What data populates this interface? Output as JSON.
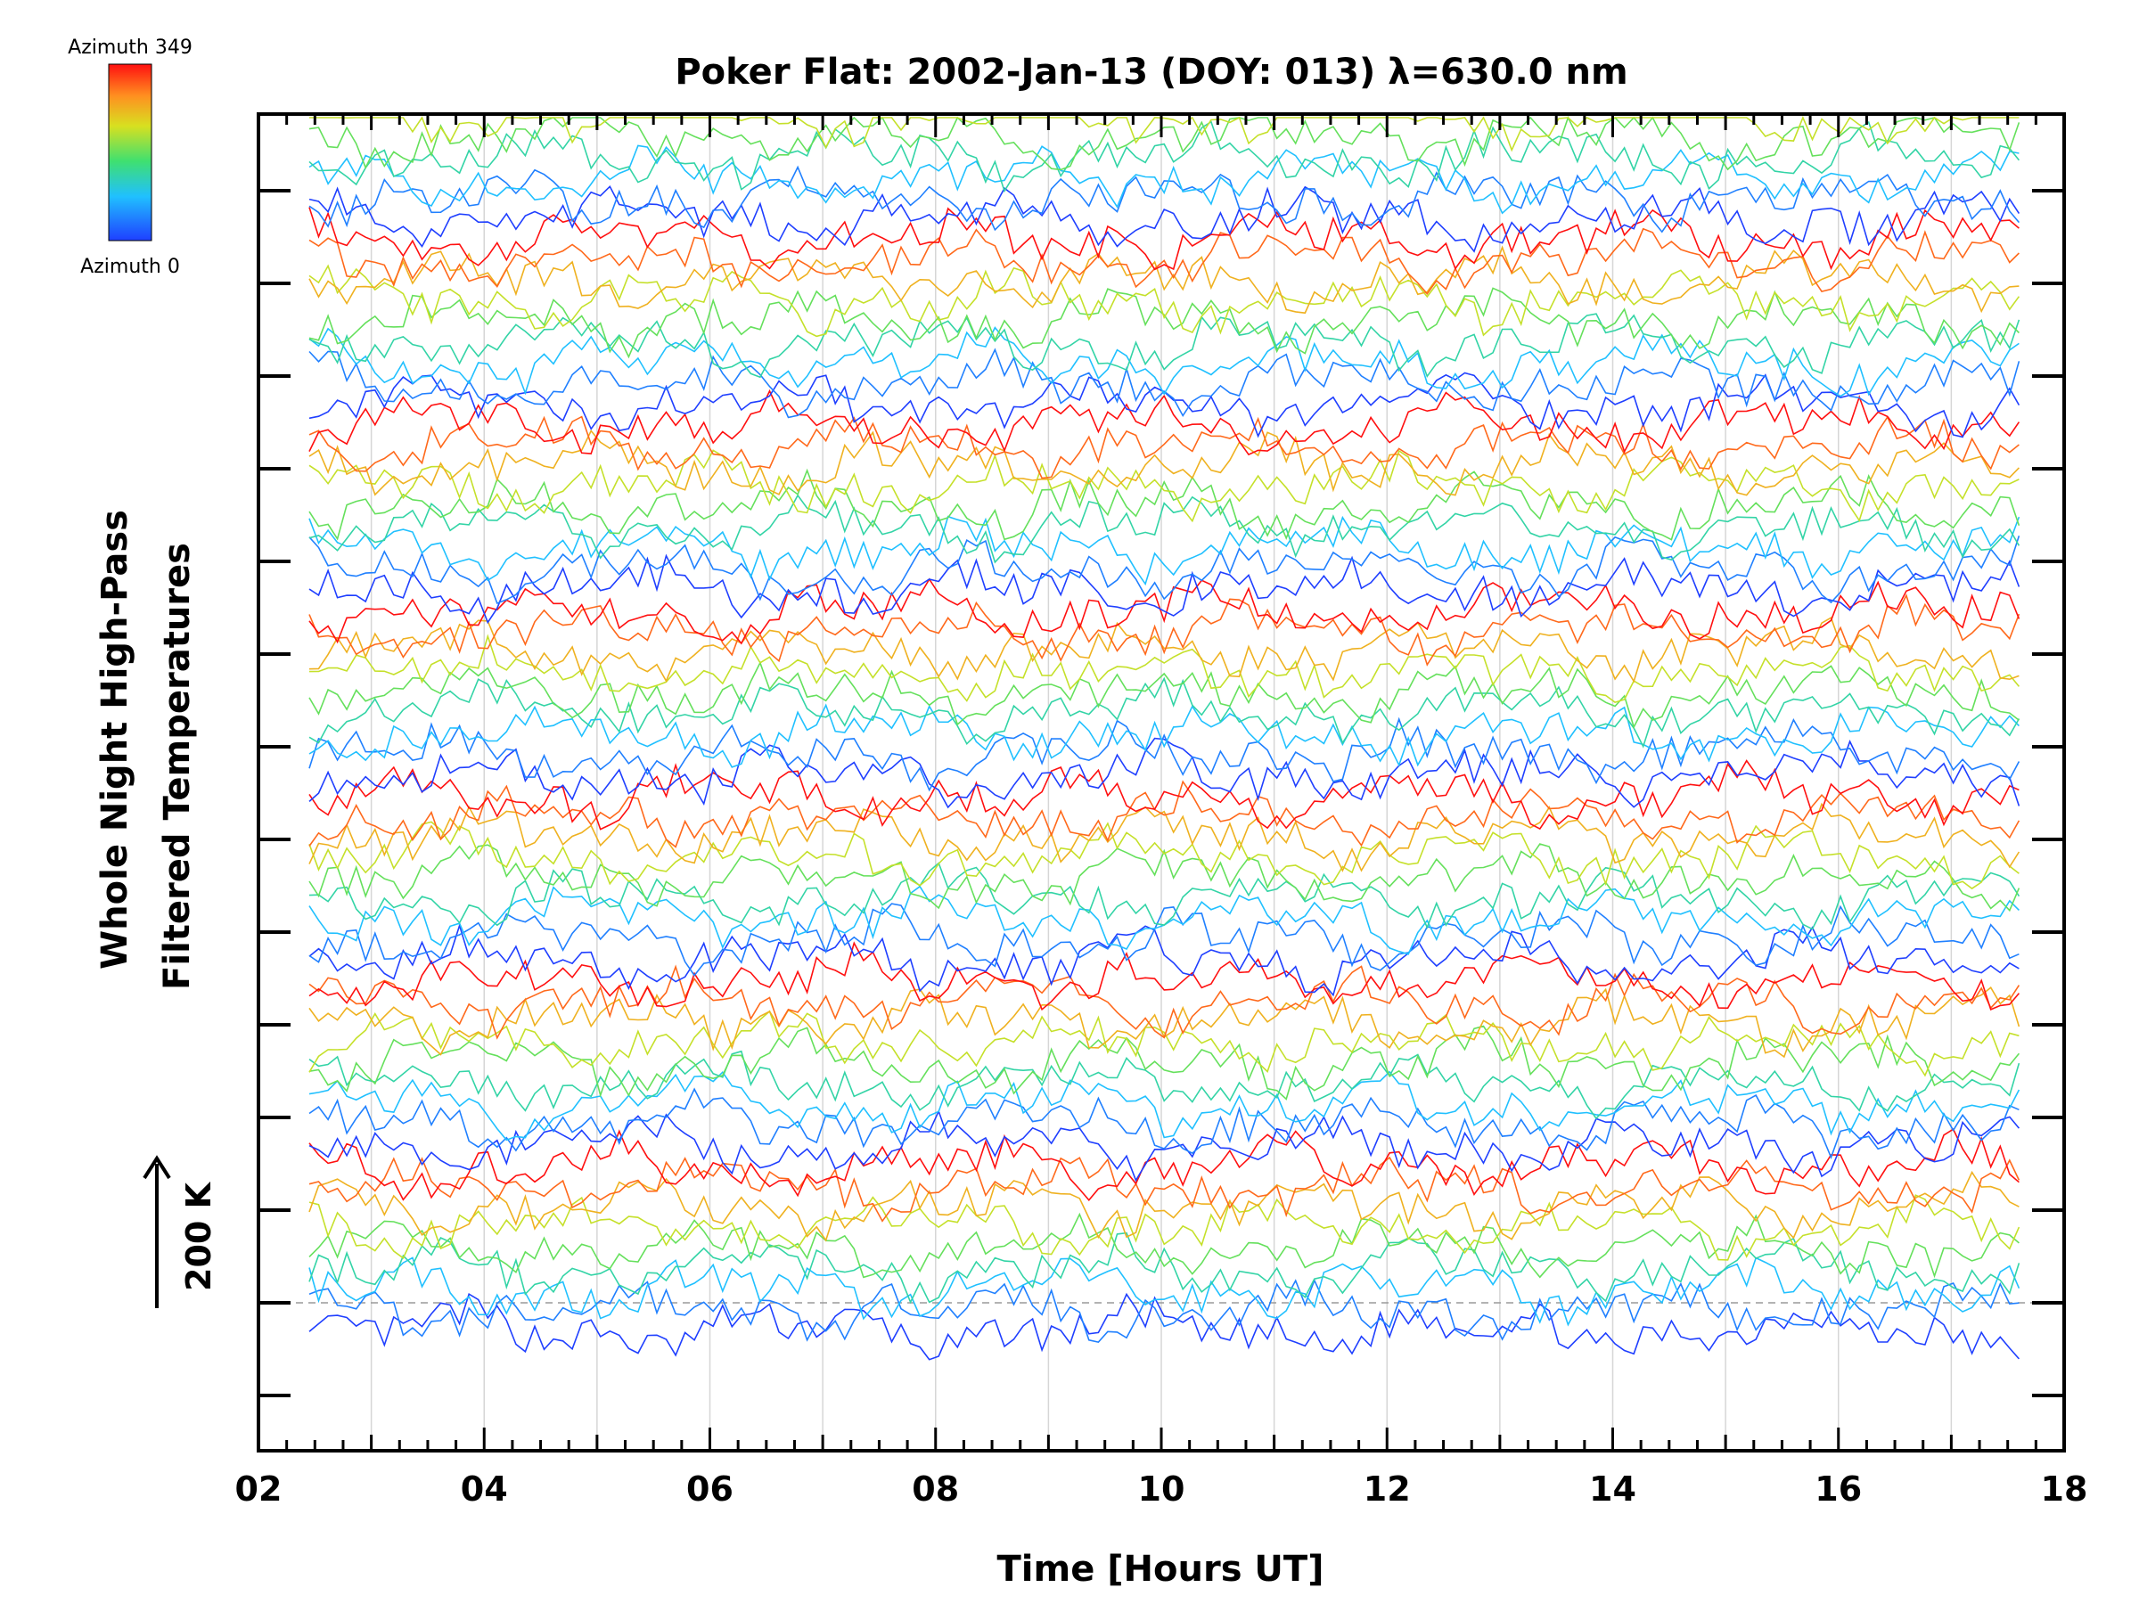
{
  "chart_data": {
    "type": "line",
    "title": "Poker Flat: 2002-Jan-13 (DOY: 013) λ=630.0 nm",
    "xlabel": "Time [Hours UT]",
    "ylabel_line1": "Whole Night High-Pass",
    "ylabel_line2": "Filtered Temperatures",
    "xlim": [
      2,
      18
    ],
    "x_tick_labels": [
      "02",
      "04",
      "06",
      "08",
      "10",
      "12",
      "14",
      "16",
      "18"
    ],
    "x_ticks": [
      2,
      4,
      6,
      8,
      10,
      12,
      14,
      16,
      18
    ],
    "x_range_data": [
      2.45,
      17.6
    ],
    "y_scale_bar": {
      "label": "200 K",
      "value": 200
    },
    "colorbar": {
      "top_label": "Azimuth 349",
      "bottom_label": "Azimuth 0",
      "colormap": "rainbow",
      "min": 0,
      "max": 349
    },
    "grid": "vertical lines at each hour",
    "baseline": "dashed gray line at lowest trace",
    "n_traces": 60,
    "n_groups": 7,
    "group_spacing_K": 400,
    "trace_spacing_K": 55,
    "fluctuation_amplitude_K": 45,
    "sample_interval_hours": 0.0833
  }
}
